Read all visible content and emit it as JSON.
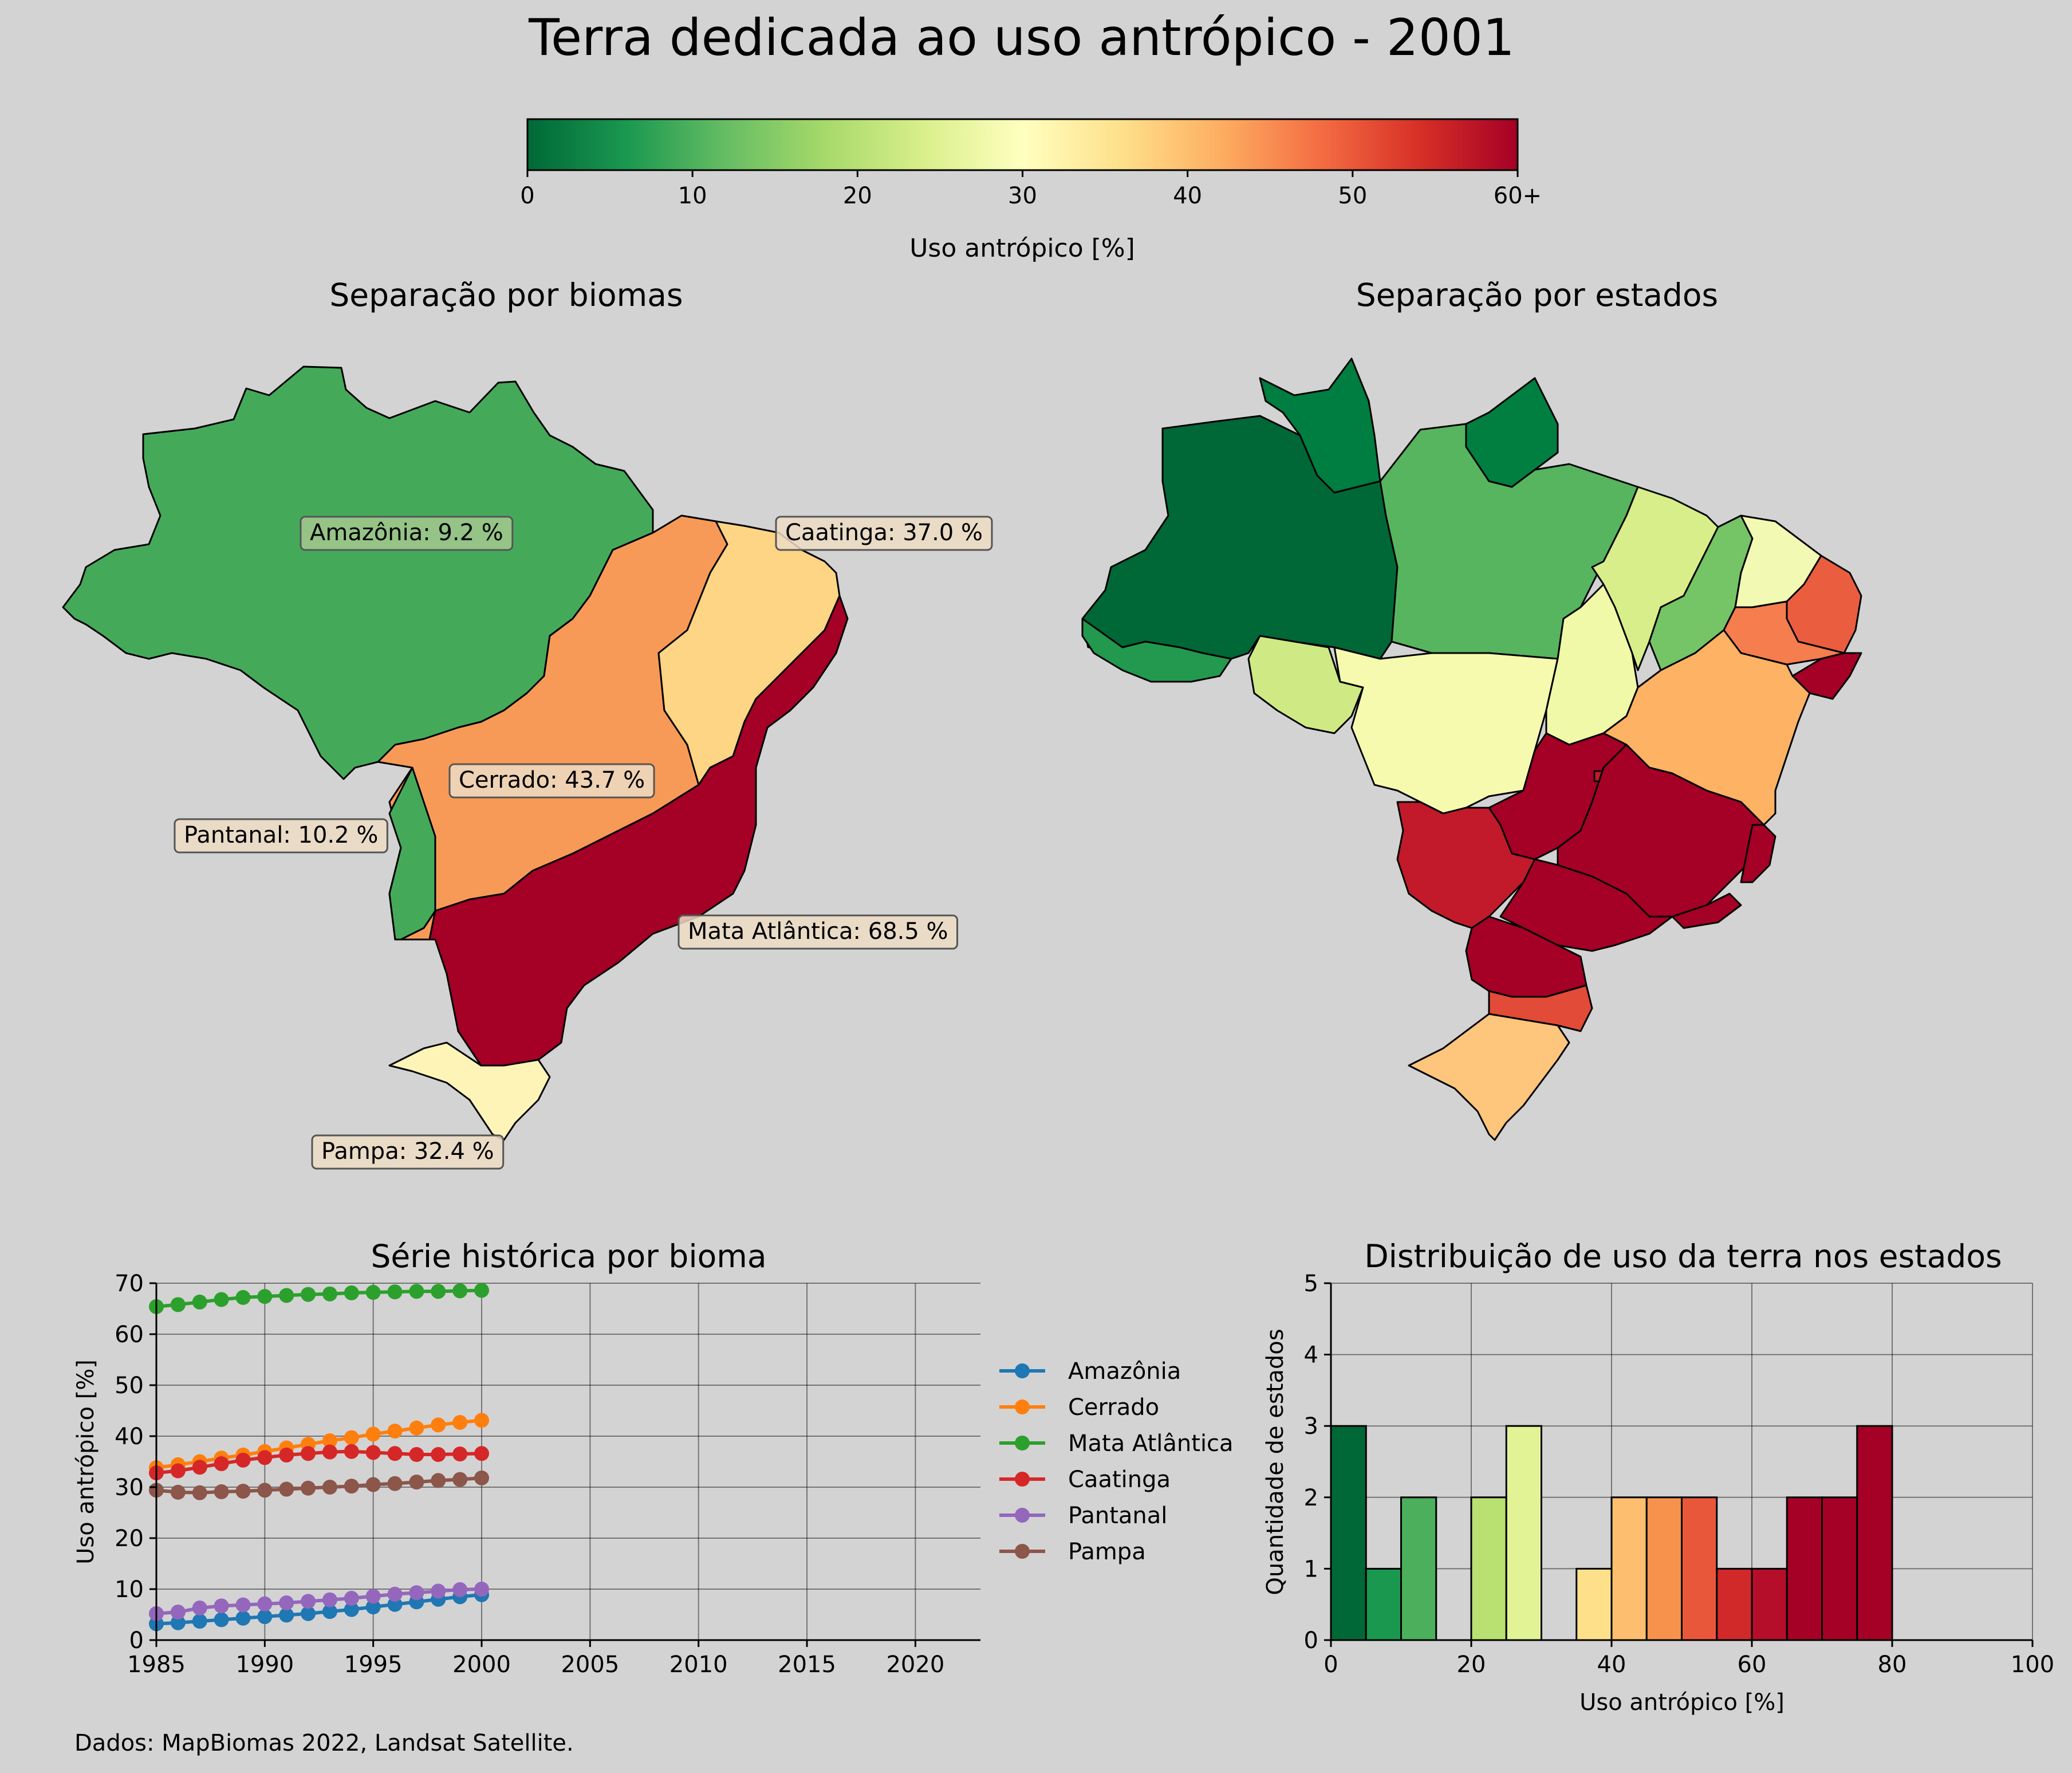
{
  "title": "Terra dedicada ao uso antrópico - 2001",
  "colorbar": {
    "ticks": [
      "0",
      "10",
      "20",
      "30",
      "40",
      "50",
      "60+"
    ],
    "label": "Uso antrópico [%]",
    "colors": [
      "#006837",
      "#1a9850",
      "#66bd63",
      "#a6d96a",
      "#d9ef8b",
      "#ffffbf",
      "#fee08b",
      "#fdae61",
      "#f46d43",
      "#d73027",
      "#a50026"
    ]
  },
  "maps": {
    "biomes_title": "Separação por biomas",
    "states_title": "Separação por estados",
    "biome_labels": [
      {
        "text": "Amazônia: 9.2 %",
        "color": "#a3c98e"
      },
      {
        "text": "Caatinga: 37.0 %",
        "color": "#ecdcc3"
      },
      {
        "text": "Cerrado: 43.7 %",
        "color": "#ecdcc3"
      },
      {
        "text": "Pantanal: 10.2 %",
        "color": "#ecdcc3"
      },
      {
        "text": "Mata Atlântica: 68.5 %",
        "color": "#ecdcc3"
      },
      {
        "text": "Pampa: 32.4 %",
        "color": "#ecdcc3"
      }
    ],
    "biome_colors": {
      "amazonia": "#44aa5a",
      "cerrado": "#f89a57",
      "caatinga": "#fed485",
      "mata_atlantica": "#a50026",
      "pantanal": "#44aa5a",
      "pampa": "#fef4b8"
    }
  },
  "chart_data": [
    {
      "type": "line",
      "title": "Série histórica por bioma",
      "xlabel": "",
      "ylabel": "Uso antrópico [%]",
      "xlim": [
        1985,
        2023
      ],
      "ylim": [
        0,
        70
      ],
      "xticks": [
        "1985",
        "1990",
        "1995",
        "2000",
        "2005",
        "2010",
        "2015",
        "2020"
      ],
      "yticks": [
        "0",
        "10",
        "20",
        "30",
        "40",
        "50",
        "60",
        "70"
      ],
      "grid": true,
      "legend_position": "right",
      "x": [
        1985,
        1986,
        1987,
        1988,
        1989,
        1990,
        1991,
        1992,
        1993,
        1994,
        1995,
        1996,
        1997,
        1998,
        1999,
        2000
      ],
      "series": [
        {
          "name": "Amazônia",
          "color": "#1f77b4",
          "values": [
            3.2,
            3.4,
            3.7,
            4.0,
            4.3,
            4.6,
            4.9,
            5.2,
            5.6,
            6.0,
            6.5,
            7.0,
            7.5,
            8.0,
            8.5,
            8.9
          ]
        },
        {
          "name": "Cerrado",
          "color": "#ff7f0e",
          "values": [
            33.8,
            34.4,
            35.0,
            35.7,
            36.3,
            37.0,
            37.7,
            38.4,
            39.1,
            39.7,
            40.4,
            41.0,
            41.6,
            42.2,
            42.7,
            43.1
          ]
        },
        {
          "name": "Mata Atlântica",
          "color": "#2ca02c",
          "values": [
            65.4,
            65.8,
            66.3,
            66.8,
            67.2,
            67.4,
            67.6,
            67.8,
            67.9,
            68.1,
            68.2,
            68.3,
            68.4,
            68.4,
            68.5,
            68.6
          ]
        },
        {
          "name": "Caatinga",
          "color": "#d62728",
          "values": [
            32.8,
            33.2,
            33.9,
            34.6,
            35.3,
            35.8,
            36.3,
            36.6,
            36.9,
            37.0,
            36.8,
            36.6,
            36.4,
            36.4,
            36.5,
            36.6
          ]
        },
        {
          "name": "Pantanal",
          "color": "#9467bd",
          "values": [
            5.2,
            5.5,
            6.3,
            6.7,
            6.9,
            7.1,
            7.3,
            7.6,
            7.9,
            8.2,
            8.6,
            9.0,
            9.3,
            9.6,
            9.9,
            10.0
          ]
        },
        {
          "name": "Pampa",
          "color": "#8c564b",
          "values": [
            29.4,
            29.0,
            28.9,
            29.1,
            29.2,
            29.4,
            29.6,
            29.8,
            30.0,
            30.2,
            30.5,
            30.7,
            31.0,
            31.3,
            31.5,
            31.8
          ]
        }
      ]
    },
    {
      "type": "bar",
      "title": "Distribuição de uso da terra nos estados",
      "xlabel": "Uso antrópico [%]",
      "ylabel": "Quantidade de estados",
      "xlim": [
        0,
        100
      ],
      "ylim": [
        0,
        5
      ],
      "xticks": [
        "0",
        "20",
        "40",
        "60",
        "80",
        "100"
      ],
      "yticks": [
        "0",
        "1",
        "2",
        "3",
        "4",
        "5"
      ],
      "grid": true,
      "bin_width": 5,
      "bin_starts": [
        0,
        5,
        10,
        15,
        20,
        25,
        30,
        35,
        40,
        45,
        50,
        55,
        60,
        65,
        70,
        75
      ],
      "values": [
        3,
        1,
        2,
        0,
        2,
        3,
        0,
        1,
        2,
        2,
        2,
        1,
        1,
        2,
        2,
        3
      ],
      "colors": [
        "#006837",
        "#1a9850",
        "#4caf5c",
        "#7fc263",
        "#b9e172",
        "#e2f396",
        "#ffffbf",
        "#fee08b",
        "#fdbf6f",
        "#f7924c",
        "#e9573b",
        "#d1282a",
        "#b50e2b",
        "#a50026",
        "#a50026",
        "#a50026"
      ]
    }
  ],
  "footer": "Dados: MapBiomas 2022, Landsat Satellite."
}
